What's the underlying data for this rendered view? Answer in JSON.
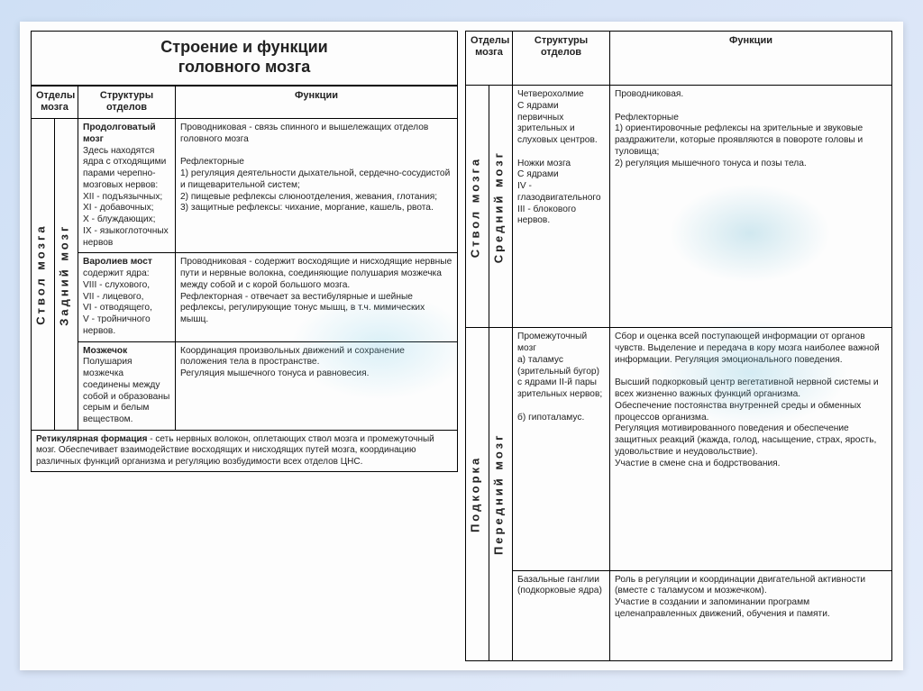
{
  "styling": {
    "page_bg_gradient": [
      "#cfe0f5",
      "#d8e4f7",
      "#e4ecfa"
    ],
    "sheet_bg": "#fdfdfd",
    "border_color": "#000000",
    "text_color": "#222222",
    "watermark_color": "#5bb6d6",
    "title_fontsize_pt": 18,
    "header_fontsize_pt": 11,
    "body_fontsize_pt": 10
  },
  "title": {
    "line1": "Строение и функции",
    "line2": "головного мозга"
  },
  "headers": {
    "col1": "Отделы мозга",
    "col2": "Структуры отделов",
    "col3": "Функции"
  },
  "left": {
    "vert_outer": "Ствол мозга",
    "vert_inner": "Задний мозг",
    "rows": [
      {
        "struct_title": "Продолговатый мозг",
        "struct_body": "Здесь находятся ядра с отходящими парами черепно-мозговых нервов:\nXII - подъязычных;\nXI - добавочных;\nX - блуждающих;\nIX - языкоглоточных нервов",
        "func": "Проводниковая - связь спинного и вышележащих отделов головного мозга\n\nРефлекторные\n1) регуляция деятельности дыхательной, сердечно-сосудистой и пищеварительной систем;\n2) пищевые рефлексы слюноотделения, жевания, глотания;\n3) защитные рефлексы: чихание, моргание, кашель, рвота."
      },
      {
        "struct_title": "Варолиев мост",
        "struct_body": "содержит ядра:\nVIII - слухового,\nVII - лицевого,\nVI - отводящего,\nV - тройничного нервов.",
        "func": "Проводниковая - содержит восходящие и нисходящие нервные пути и нервные волокна, соединяющие полушария мозжечка между собой и с корой большого мозга.\nРефлекторная - отвечает за вестибулярные и шейные рефлексы, регулирующие тонус мышц, в т.ч. мимических мышц."
      },
      {
        "struct_title": "Мозжечок",
        "struct_body": "Полушария мозжечка соединены между собой и образованы серым и белым веществом.",
        "func": "Координация произвольных движений и сохранение положения тела в пространстве.\nРегуляция мышечного тонуса и равновесия."
      }
    ],
    "footer_title": "Ретикулярная формация",
    "footer_body": " - сеть нервных волокон, оплетающих ствол мозга и промежуточный мозг. Обеспечивает взаимодействие восходящих и нисходящих путей мозга, координацию различных функций организма и регуляцию возбудимости всех отделов ЦНС."
  },
  "right": {
    "group1_outer": "Ствол мозга",
    "group1_inner": "Средний мозг",
    "group2_outer": "Подкорка",
    "group2_inner": "Передний мозг",
    "rows": [
      {
        "struct": "Четверохолмие\nС ядрами первичных зрительных и слуховых центров.\n\nНожки мозга\nС ядрами\nIV - глазодвигательного\nIII - блокового нервов.",
        "func": "Проводниковая.\n\nРефлекторные\n1) ориентировочные рефлексы на зрительные и звуковые раздражители, которые проявляются в повороте головы и туловища;\n2) регуляция мышечного тонуса и позы тела."
      },
      {
        "struct": "Промежуточный мозг\nа) таламус (зрительный бугор) с ядрами II-й пары зрительных нервов;\n\nб) гипоталамус.",
        "func": "Сбор и оценка всей поступающей информации от органов чувств. Выделение и передача в кору мозга наиболее важной информации. Регуляция эмоционального поведения.\n\nВысший подкорковый центр вегетативной нервной системы и всех жизненно важных функций организма.\nОбеспечение постоянства внутренней среды и обменных процессов организма.\nРегуляция мотивированного поведения и обеспечение защитных реакций (жажда, голод, насыщение, страх, ярость, удовольствие и неудовольствие).\nУчастие в смене сна и бодрствования."
      },
      {
        "struct": "Базальные ганглии\n(подкорковые ядра)",
        "func": "Роль в регуляции и координации двигательной активности (вместе с таламусом и мозжечком).\nУчастие в создании и запоминании программ целенаправленных движений, обучения и памяти."
      }
    ]
  }
}
